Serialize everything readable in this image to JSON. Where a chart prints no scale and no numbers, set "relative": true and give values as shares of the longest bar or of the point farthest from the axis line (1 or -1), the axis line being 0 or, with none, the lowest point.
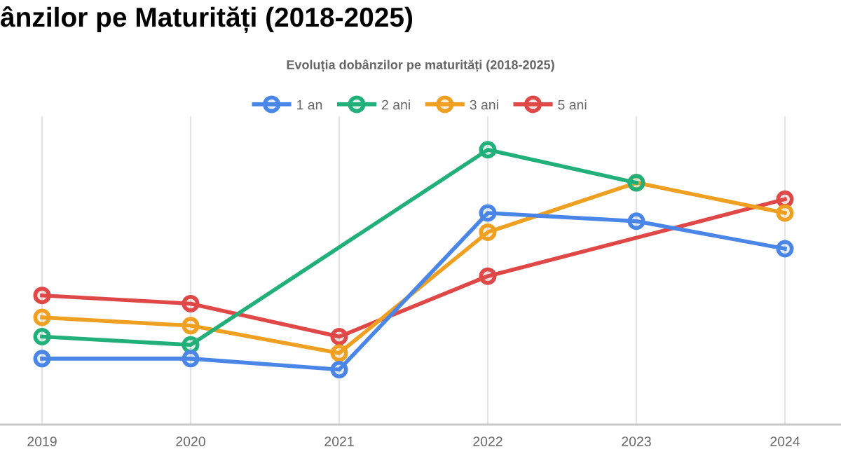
{
  "chart_data": {
    "type": "line",
    "title": "ânzilor pe Maturități (2018-2025)",
    "subtitle": "Evoluția dobânzilor pe maturități (2018-2025)",
    "categories": [
      "2019",
      "2020",
      "2021",
      "2022",
      "2023",
      "2024"
    ],
    "relative": true,
    "grid": true,
    "legend": "top",
    "marker": "circle",
    "line_style": "solid",
    "series": [
      {
        "name": "1 an",
        "color": "#4a86e8",
        "values": [
          0.24,
          0.24,
          0.2,
          0.77,
          0.74,
          0.64
        ]
      },
      {
        "name": "2 ani",
        "color": "#21b07a",
        "values": [
          0.32,
          0.29,
          null,
          1,
          0.88,
          null
        ]
      },
      {
        "name": "3 ani",
        "color": "#f0a020",
        "values": [
          0.39,
          0.36,
          0.26,
          0.7,
          0.88,
          0.77
        ]
      },
      {
        "name": "5 ani",
        "color": "#e04848",
        "values": [
          0.47,
          0.44,
          0.32,
          0.54,
          null,
          0.82
        ]
      }
    ]
  }
}
